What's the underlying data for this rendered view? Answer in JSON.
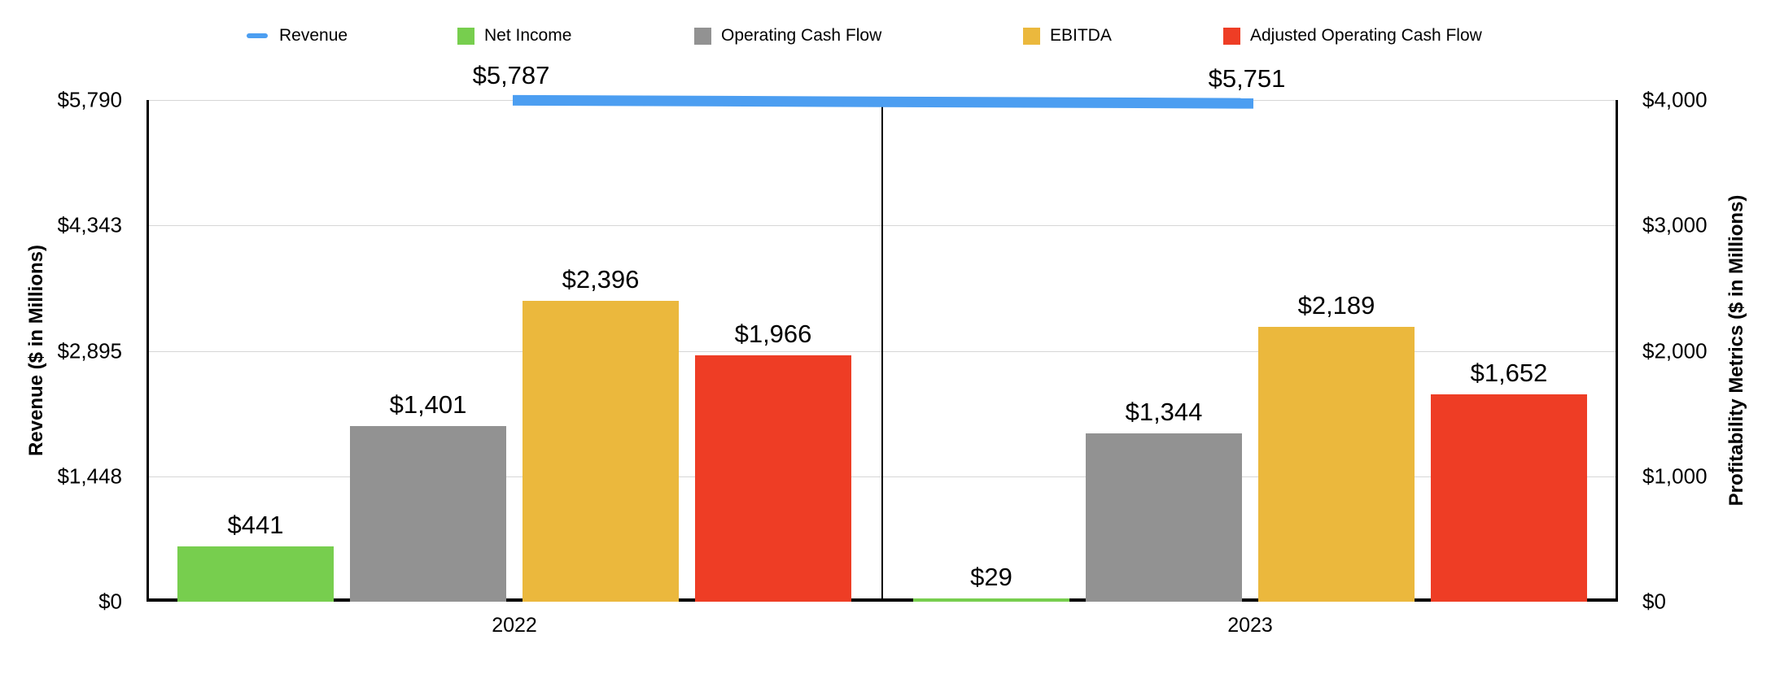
{
  "colors": {
    "revenue_blue": "#4C9EF1",
    "net_income_green": "#77CE4E",
    "operating_cash_flow_gray": "#929292",
    "ebitda_yellow": "#EBB83D",
    "adjusted_ocf_red": "#EE3D25",
    "gridline": "#D6D6D6",
    "axis_line": "#000000",
    "text": "#000000"
  },
  "legend": {
    "items": [
      {
        "label": "Revenue",
        "swatch": "line",
        "color": "#4C9EF1"
      },
      {
        "label": "Net Income",
        "swatch": "square",
        "color": "#77CE4E"
      },
      {
        "label": "Operating Cash Flow",
        "swatch": "square",
        "color": "#929292"
      },
      {
        "label": "EBITDA",
        "swatch": "square",
        "color": "#EBB83D"
      },
      {
        "label": "Adjusted Operating Cash Flow",
        "swatch": "square",
        "color": "#EE3D25"
      }
    ]
  },
  "chart_data": {
    "type": "bar",
    "categories": [
      "2022",
      "2023"
    ],
    "series": [
      {
        "name": "Net Income",
        "axis": "right",
        "color": "#77CE4E",
        "values": [
          441,
          29
        ],
        "labels": [
          "$441",
          "$29"
        ]
      },
      {
        "name": "Operating Cash Flow",
        "axis": "right",
        "color": "#929292",
        "values": [
          1401,
          1344
        ],
        "labels": [
          "$1,401",
          "$1,344"
        ]
      },
      {
        "name": "EBITDA",
        "axis": "right",
        "color": "#EBB83D",
        "values": [
          2396,
          2189
        ],
        "labels": [
          "$2,396",
          "$2,189"
        ]
      },
      {
        "name": "Adjusted Operating Cash Flow",
        "axis": "right",
        "color": "#EE3D25",
        "values": [
          1966,
          1652
        ],
        "labels": [
          "$1,966",
          "$1,652"
        ]
      }
    ],
    "line_series": [
      {
        "name": "Revenue",
        "axis": "left",
        "color": "#4C9EF1",
        "values": [
          5787,
          5751
        ],
        "labels": [
          "$5,787",
          "$5,751"
        ]
      }
    ],
    "left_axis": {
      "title": "Revenue ($ in Millions)",
      "min": 0,
      "max": 5790,
      "tick_labels": [
        "$0",
        "$1,448",
        "$2,895",
        "$4,343",
        "$5,790"
      ]
    },
    "right_axis": {
      "title": "Profitability Metrics ($ in Millions)",
      "min": 0,
      "max": 4000,
      "tick_labels": [
        "$0",
        "$1,000",
        "$2,000",
        "$3,000",
        "$4,000"
      ]
    },
    "grid": true,
    "legend_position": "top"
  }
}
